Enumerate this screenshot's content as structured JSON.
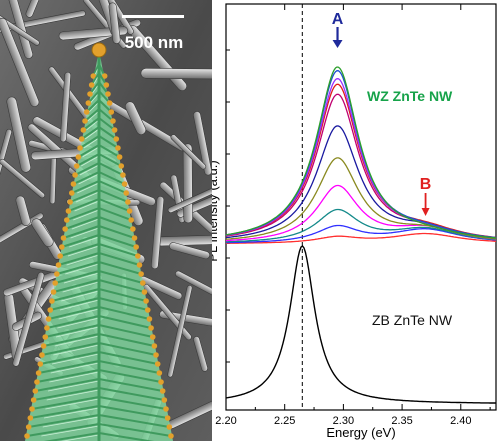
{
  "sem_image": {
    "scale_bar_label": "500 nm",
    "colors": {
      "background": "#5a5a5a",
      "rod": "#bdbdbd",
      "nanowire_fill": "#7fd49c",
      "nanowire_edge": "#3f9a5e",
      "catalyst_particle": "#e2a02c"
    }
  },
  "chart_data": {
    "type": "line",
    "xlabel": "Energy (eV)",
    "ylabel": "PL Intensity (a.u.)",
    "x_ticks": [
      "2.20",
      "2.25",
      "2.30",
      "2.35",
      "2.40"
    ],
    "xlim": [
      2.2,
      2.43
    ],
    "reference_line_x": 2.265,
    "annotations": [
      {
        "text": "A",
        "x": 2.295,
        "color": "#1f2a9b",
        "arrow": "down"
      },
      {
        "text": "B",
        "x": 2.37,
        "color": "#e02020",
        "arrow": "down"
      },
      {
        "text": "WZ ZnTe NW",
        "color": "#17a34a"
      },
      {
        "text": "ZB ZnTe NW",
        "color": "#111111"
      }
    ],
    "wz_series": {
      "peak_a_x": 2.295,
      "peak_b_x": 2.37,
      "curves": [
        {
          "color": "#2ca02c",
          "a": 0.88,
          "b": 0.03
        },
        {
          "color": "#1f4fd1",
          "a": 0.86,
          "b": 0.04
        },
        {
          "color": "#9b30ff",
          "a": 0.82,
          "b": 0.04
        },
        {
          "color": "#e01b1b",
          "a": 0.79,
          "b": 0.05
        },
        {
          "color": "#c00070",
          "a": 0.74,
          "b": 0.05
        },
        {
          "color": "#1a1aa0",
          "a": 0.58,
          "b": 0.06
        },
        {
          "color": "#8a8a20",
          "a": 0.42,
          "b": 0.06
        },
        {
          "color": "#ff00ff",
          "a": 0.28,
          "b": 0.07
        },
        {
          "color": "#148a8a",
          "a": 0.16,
          "b": 0.07
        },
        {
          "color": "#3030ff",
          "a": 0.08,
          "b": 0.07
        },
        {
          "color": "#ff3030",
          "a": 0.03,
          "b": 0.05
        }
      ]
    },
    "zb_series": {
      "peak_x": 2.265,
      "color": "#000000"
    }
  }
}
